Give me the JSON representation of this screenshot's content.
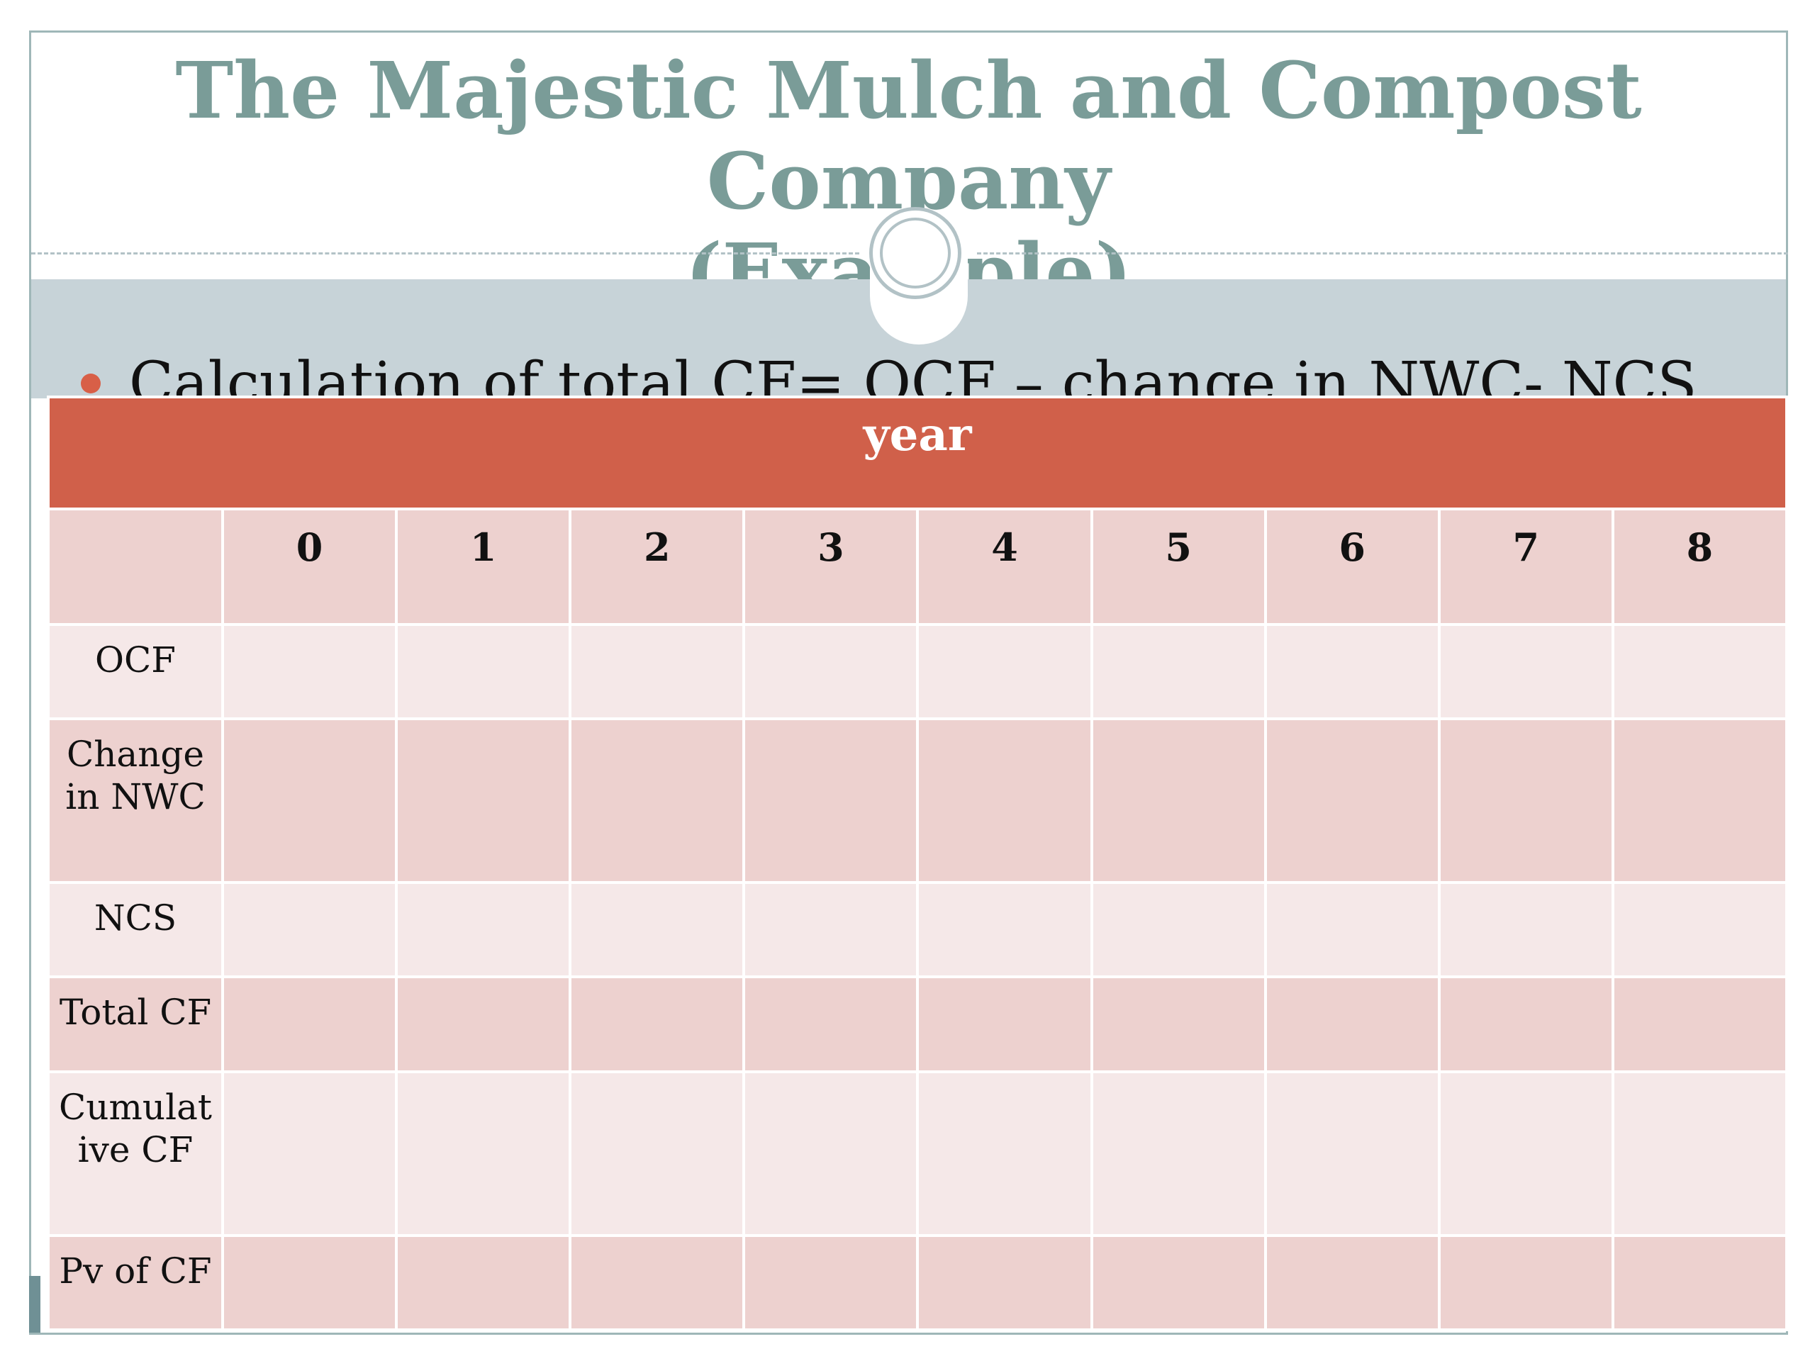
{
  "slide": {
    "title_line1": "The Majestic Mulch and Compost Company",
    "title_line2": "(Example)",
    "bullet": "Calculation of total CF= OCF – change in NWC- NCS"
  },
  "table": {
    "header": "year",
    "years": [
      "0",
      "1",
      "2",
      "3",
      "4",
      "5",
      "6",
      "7",
      "8"
    ],
    "rows": [
      {
        "label": "OCF"
      },
      {
        "label": "Change in NWC"
      },
      {
        "label": "NCS"
      },
      {
        "label": "Total CF"
      },
      {
        "label": "Cumulat ive CF"
      },
      {
        "label": "Pv of CF"
      }
    ]
  },
  "colors": {
    "title": "#7a9c98",
    "accent": "#d0604a",
    "band": "#c7d3d8",
    "row_dark": "#edd1cf",
    "row_light": "#f5e8e8"
  }
}
